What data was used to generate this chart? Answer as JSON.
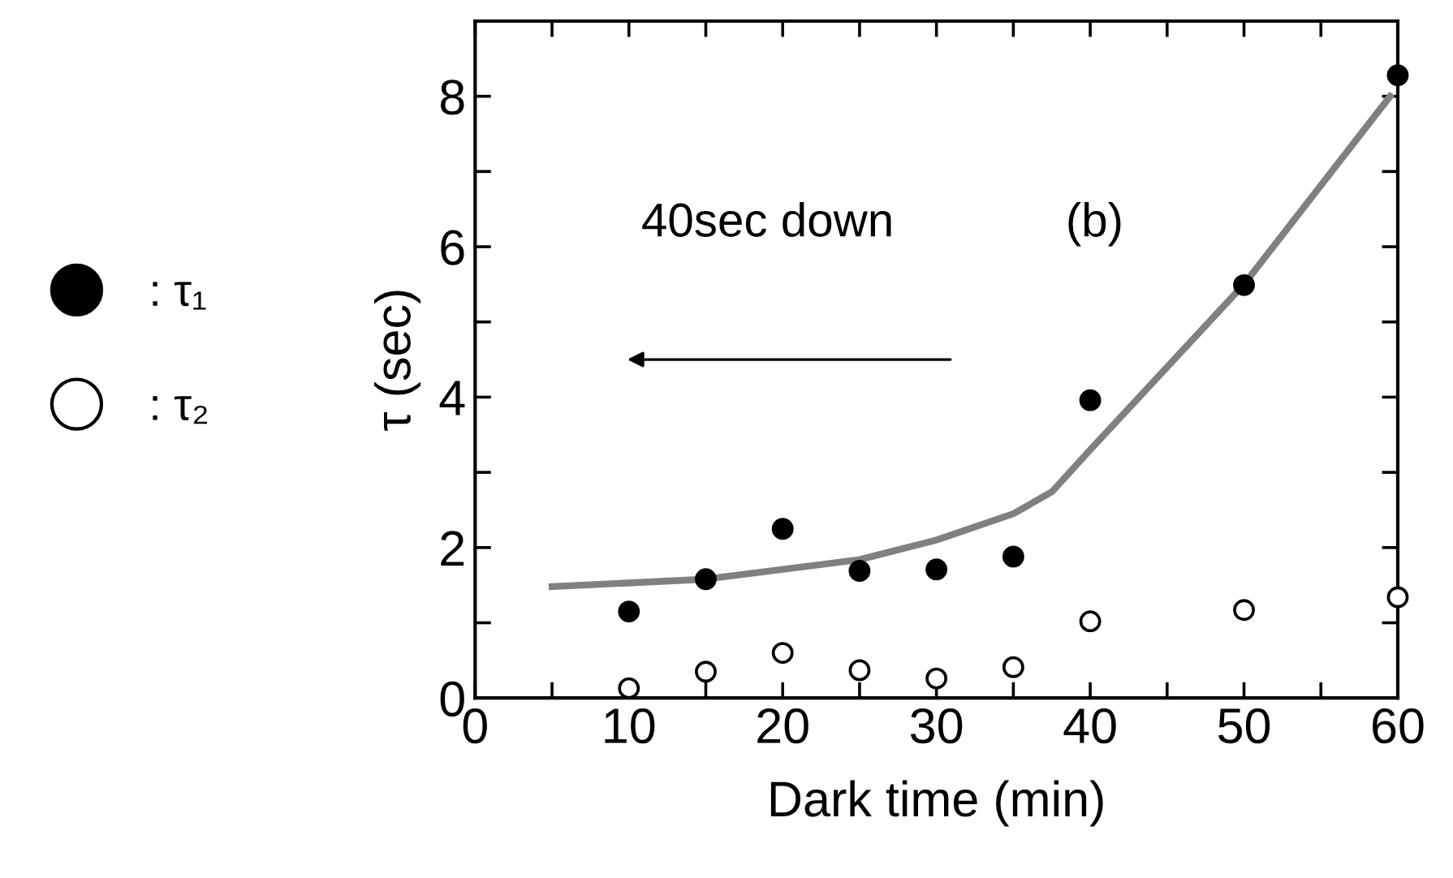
{
  "chart_data": {
    "type": "scatter",
    "xlabel": "Dark time (min)",
    "ylabel": "τ (sec)",
    "xlim": [
      0,
      60
    ],
    "ylim": [
      0,
      9
    ],
    "xticks": [
      0,
      {
        "value": 5,
        "label": null
      },
      10,
      {
        "value": 15,
        "label": null
      },
      20,
      {
        "value": 25,
        "label": null
      },
      30,
      {
        "value": 35,
        "label": null
      },
      40,
      {
        "value": 45,
        "label": null
      },
      50,
      {
        "value": 55,
        "label": null
      },
      60
    ],
    "yticks": [
      0,
      {
        "value": 1,
        "label": null
      },
      2,
      {
        "value": 3,
        "label": null
      },
      4,
      {
        "value": 5,
        "label": null
      },
      6,
      {
        "value": 7,
        "label": null
      },
      8
    ],
    "grid": false,
    "legend": "left",
    "annotations": [
      "40sec down",
      "(b)"
    ],
    "series": [
      {
        "name": ": τ₁",
        "marker": "circle",
        "color": "#000000",
        "x": [
          10,
          15,
          20,
          25,
          30,
          35,
          40,
          50,
          60
        ],
        "values": [
          1.15,
          1.58,
          2.25,
          1.69,
          1.71,
          1.88,
          3.96,
          5.49,
          8.28
        ]
      },
      {
        "name": ": τ₂",
        "marker": "circle",
        "color": "#ffffff",
        "x": [
          10,
          15,
          20,
          25,
          30,
          35,
          40,
          50,
          60
        ],
        "values": [
          0.13,
          0.35,
          0.6,
          0.37,
          0.26,
          0.41,
          1.02,
          1.17,
          1.34
        ]
      },
      {
        "type": "line",
        "color": "#808080",
        "x": [
          5,
          15,
          25,
          30,
          35,
          37.5,
          40,
          50,
          59.5
        ],
        "values": [
          1.48,
          1.58,
          1.84,
          2.1,
          2.45,
          2.74,
          3.3,
          5.5,
          8.0
        ]
      }
    ]
  }
}
